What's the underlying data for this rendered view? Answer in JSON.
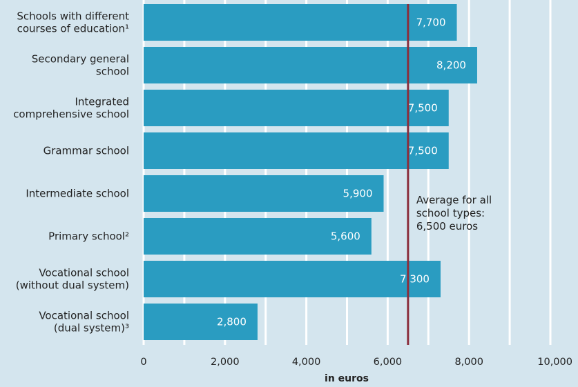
{
  "chart_data": {
    "type": "bar",
    "orientation": "horizontal",
    "categories": [
      [
        "Schools with different",
        "courses of education¹"
      ],
      [
        "Secondary general",
        "school"
      ],
      [
        "Integrated",
        "comprehensive school"
      ],
      [
        "Grammar school"
      ],
      [
        "Intermediate school"
      ],
      [
        "Primary school²"
      ],
      [
        "Vocational school",
        "(without dual system)"
      ],
      [
        "Vocational school",
        "(dual system)³"
      ]
    ],
    "values": [
      7700,
      8200,
      7500,
      7500,
      5900,
      5600,
      7300,
      2800
    ],
    "value_labels": [
      "7,700",
      "8,200",
      "7,500",
      "7,500",
      "5,900",
      "5,600",
      "7,300",
      "2,800"
    ],
    "xlabel": "in euros",
    "ylabel": "",
    "xlim": [
      0,
      10000
    ],
    "xticks": [
      0,
      2000,
      4000,
      6000,
      8000,
      10000
    ],
    "xtick_labels": [
      "0",
      "2,000",
      "4,000",
      "6,000",
      "8,000",
      "10,000"
    ],
    "grid": true,
    "reference_line": {
      "value": 6500,
      "label": [
        "Average for all",
        "school types:",
        "6,500 euros"
      ]
    },
    "colors": {
      "background": "#d4e5ee",
      "bar": "#2a9cc1",
      "bar_label": "#ffffff",
      "reference_line": "#8b2e3c",
      "gridline": "#ffffff",
      "text": "#222222"
    }
  }
}
